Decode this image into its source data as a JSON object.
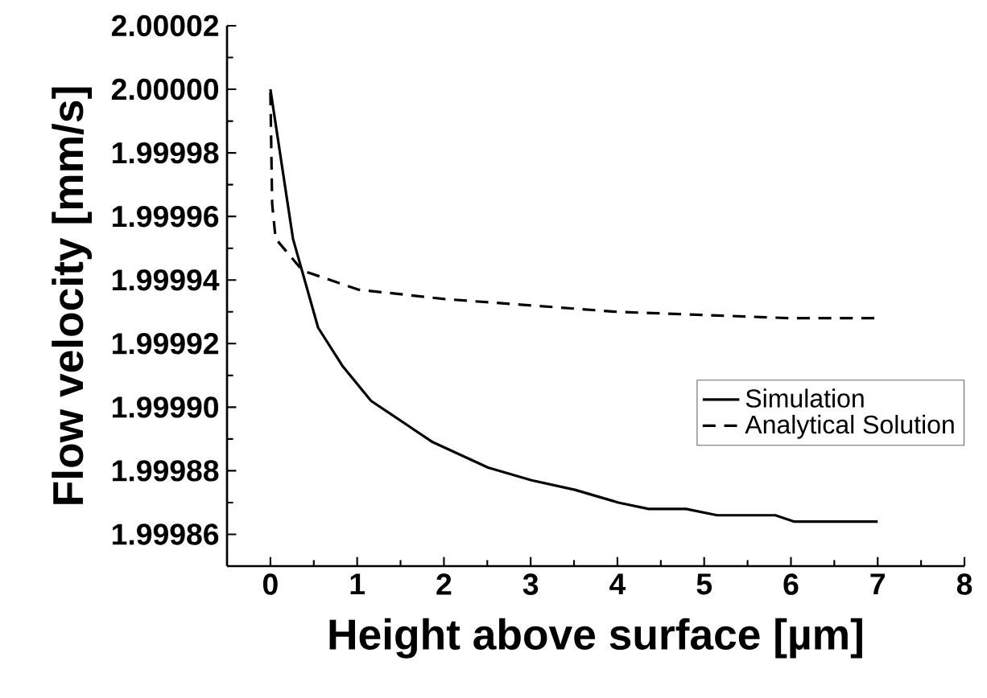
{
  "chart_data": {
    "type": "line",
    "xlabel": "Height above surface [µm]",
    "ylabel": "Flow velocity [mm/s]",
    "xlim": [
      -0.5,
      8
    ],
    "xticks": [
      0,
      1,
      2,
      3,
      4,
      5,
      6,
      7,
      8
    ],
    "ylim": [
      1.99985,
      2.00002
    ],
    "yticks": [
      {
        "value": 1.99986,
        "label": "1.99986"
      },
      {
        "value": 1.99988,
        "label": "1.99988"
      },
      {
        "value": 1.9999,
        "label": "1.99990"
      },
      {
        "value": 1.99992,
        "label": "1.99992"
      },
      {
        "value": 1.99994,
        "label": "1.99994"
      },
      {
        "value": 1.99996,
        "label": "1.99996"
      },
      {
        "value": 1.99998,
        "label": "1.99998"
      },
      {
        "value": 2.0,
        "label": "2.00000"
      },
      {
        "value": 2.00002,
        "label": "2.00002"
      }
    ],
    "grid": false,
    "legend": "right",
    "marker": "none",
    "series": [
      {
        "name": "Simulation",
        "color": "#000000",
        "line_style": "solid",
        "x": [
          0,
          0.26,
          0.55,
          0.83,
          1.16,
          1.87,
          2.51,
          3.01,
          3.51,
          4.01,
          4.36,
          4.79,
          5.15,
          5.82,
          6.04,
          7
        ],
        "values": [
          2.0,
          1.999953,
          1.999925,
          1.999913,
          1.999902,
          1.999889,
          1.999881,
          1.999877,
          1.999874,
          1.99987,
          1.999868,
          1.999868,
          1.999866,
          1.999866,
          1.999864,
          1.999864
        ]
      },
      {
        "name": "Analytical Solution",
        "color": "#000000",
        "line_style": "dashed",
        "x": [
          0,
          0.02,
          0.06,
          0.37,
          1.01,
          2.01,
          3.01,
          4.0,
          5.0,
          6.0,
          7.0
        ],
        "values": [
          1.999999,
          1.999964,
          1.999953,
          1.999943,
          1.999937,
          1.999934,
          1.999932,
          1.99993,
          1.999929,
          1.999928,
          1.999928
        ]
      }
    ]
  }
}
